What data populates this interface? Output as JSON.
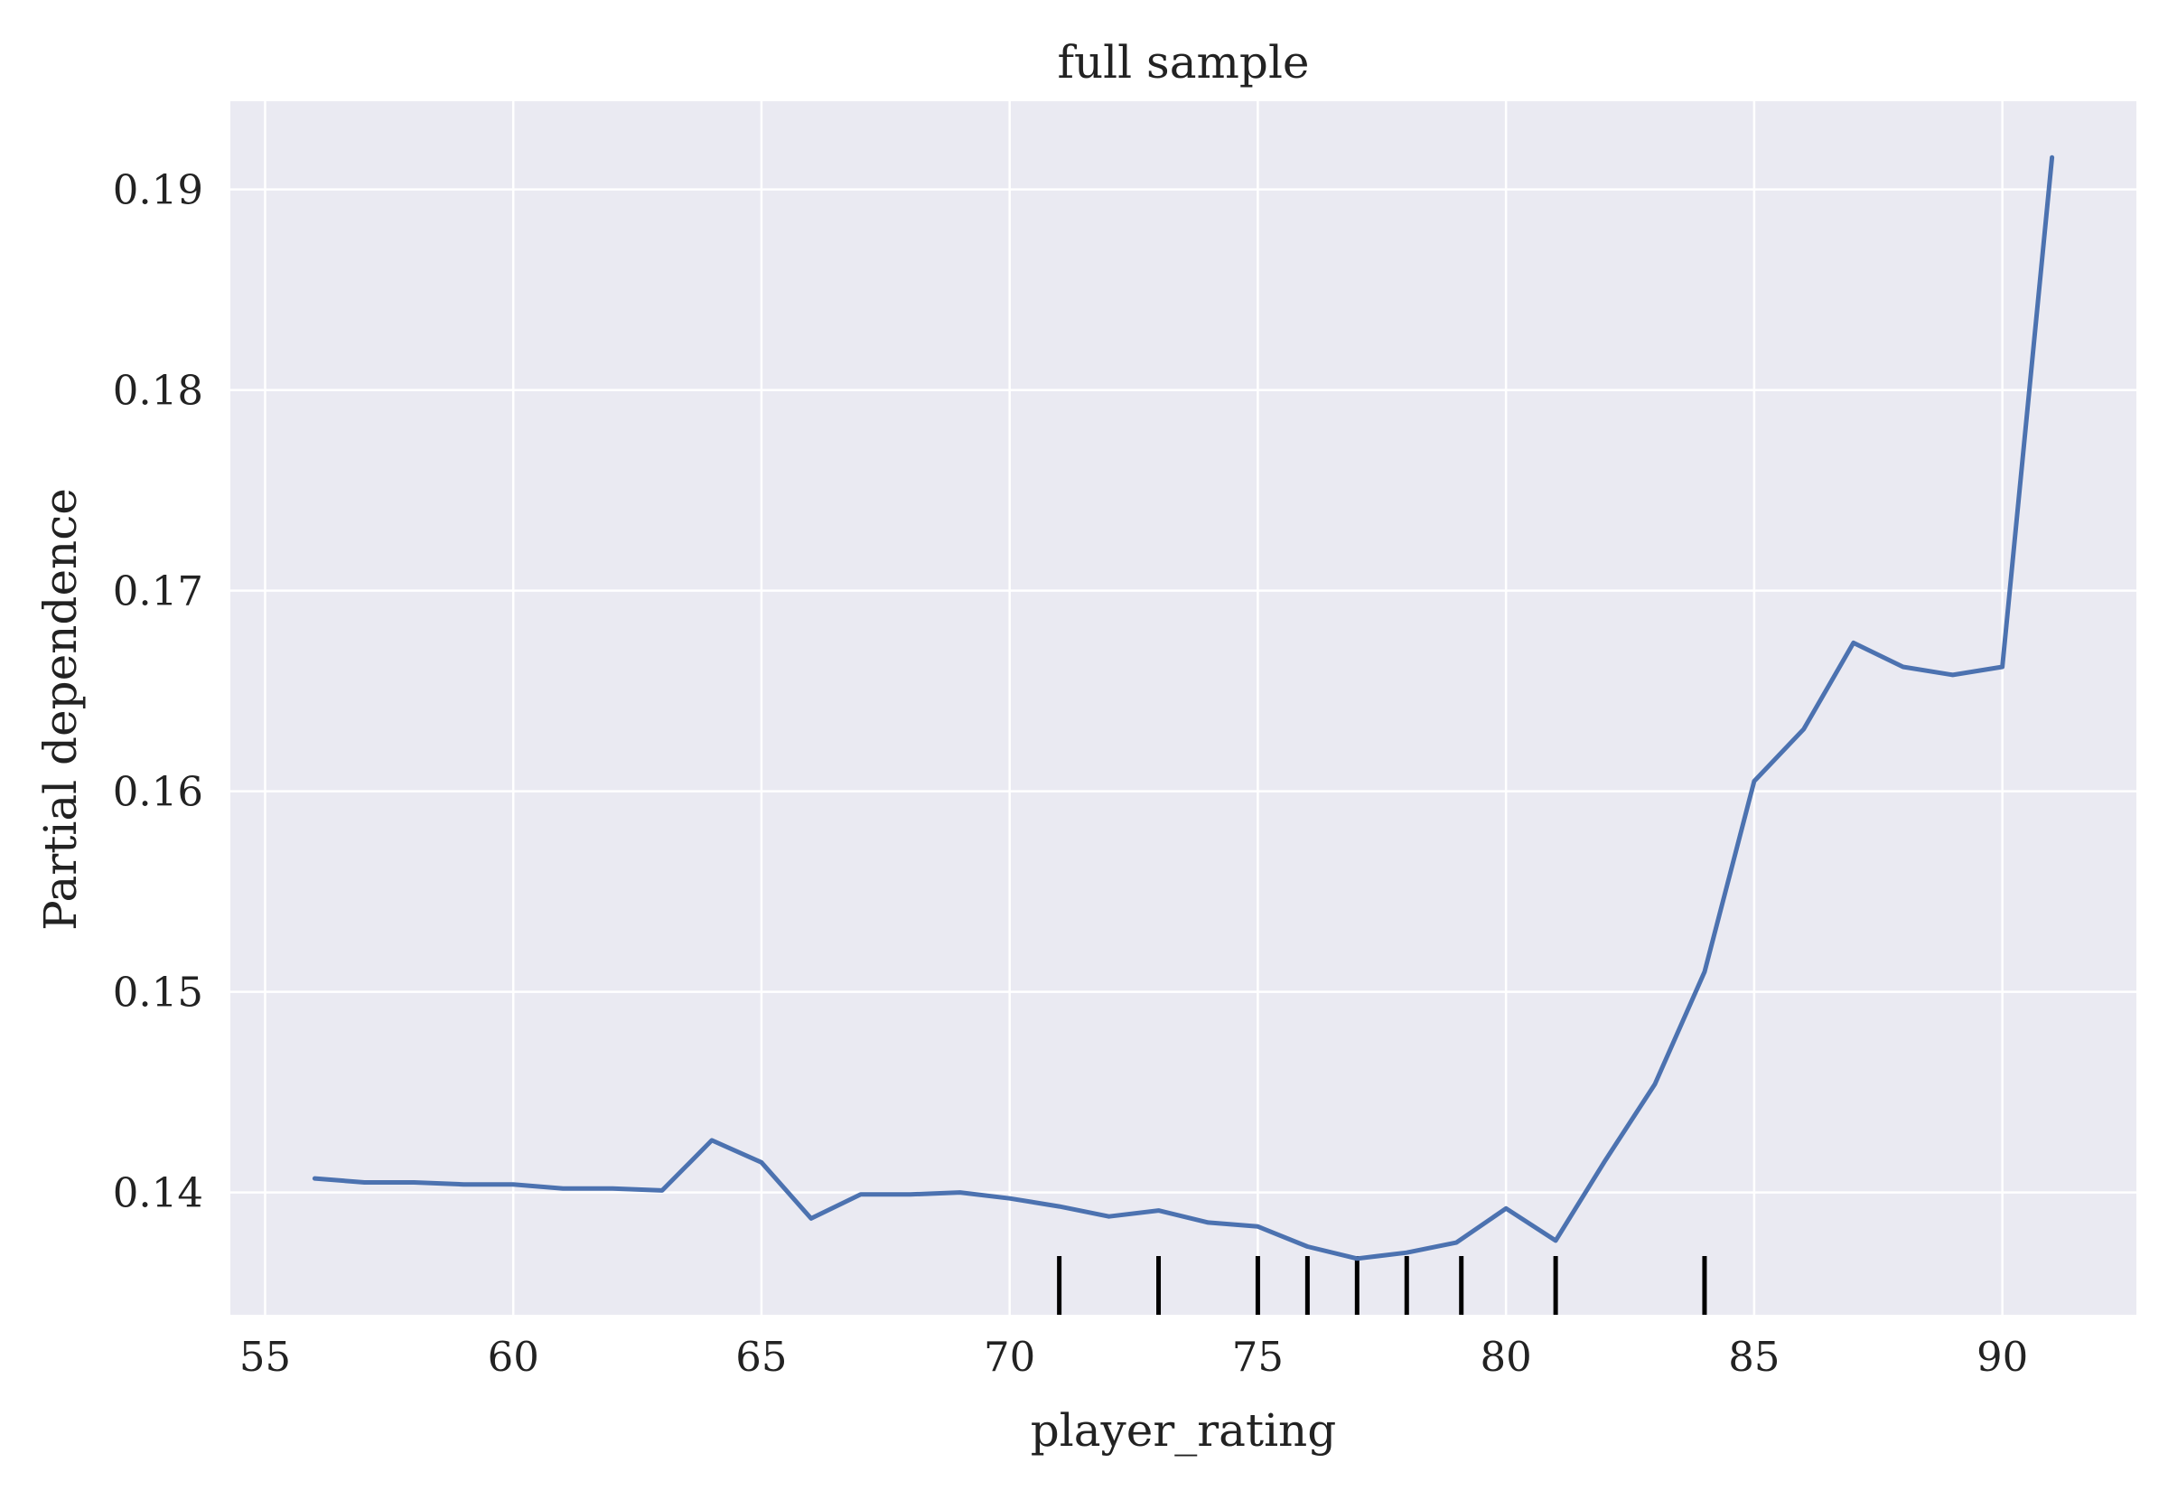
{
  "chart_data": {
    "type": "line",
    "title": "full sample",
    "xlabel": "player_rating",
    "ylabel": "Partial dependence",
    "xlim": [
      54.3,
      92.7
    ],
    "ylim": [
      0.1339,
      0.1944
    ],
    "xticks": [
      55,
      60,
      65,
      70,
      75,
      80,
      85,
      90
    ],
    "yticks": [
      0.14,
      0.15,
      0.16,
      0.17,
      0.18,
      0.19
    ],
    "xtick_labels": [
      "55",
      "60",
      "65",
      "70",
      "75",
      "80",
      "85",
      "90"
    ],
    "ytick_labels": [
      "0.14",
      "0.15",
      "0.16",
      "0.17",
      "0.18",
      "0.19"
    ],
    "grid": true,
    "background_color": "#eaeaf2",
    "line_color": "#4c72b0",
    "rug_color": "#000000",
    "x": [
      56,
      57,
      58,
      59,
      60,
      61,
      62,
      63,
      64,
      65,
      66,
      67,
      68,
      69,
      70,
      71,
      72,
      73,
      74,
      75,
      76,
      77,
      78,
      79,
      80,
      81,
      82,
      83,
      84,
      85,
      86,
      87,
      88,
      89,
      90,
      91
    ],
    "y": [
      0.1407,
      0.1405,
      0.1405,
      0.1404,
      0.1404,
      0.1402,
      0.1402,
      0.1401,
      0.1426,
      0.1415,
      0.1387,
      0.1399,
      0.1399,
      0.14,
      0.1397,
      0.1393,
      0.1388,
      0.1391,
      0.1385,
      0.1383,
      0.1373,
      0.1367,
      0.137,
      0.1375,
      0.1392,
      0.1376,
      0.1416,
      0.1454,
      0.151,
      0.1605,
      0.1631,
      0.1674,
      0.1662,
      0.1658,
      0.1662,
      0.1916
    ],
    "rug_x": [
      71,
      73,
      75,
      76,
      77,
      78,
      79.1,
      81,
      84
    ]
  }
}
